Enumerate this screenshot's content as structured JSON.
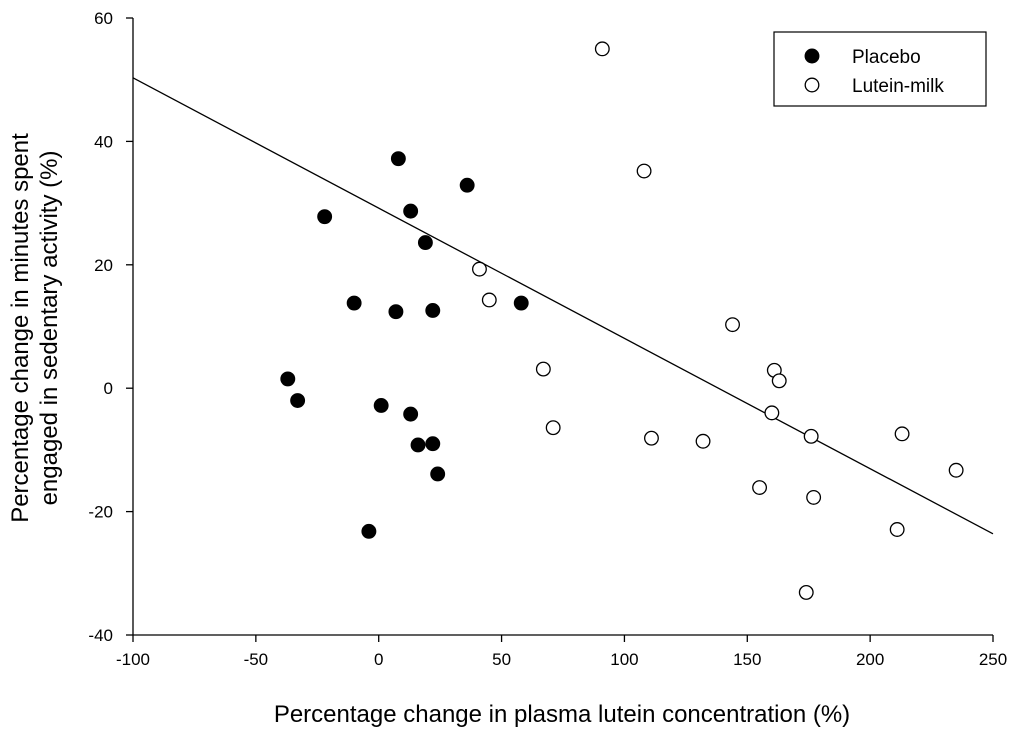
{
  "chart_data": {
    "type": "scatter",
    "title": "",
    "xlabel": "Percentage change in plasma lutein concentration (%)",
    "ylabel_lines": [
      "Percentage change in minutes spent",
      "engaged in sedentary activity (%)"
    ],
    "xlim": [
      -100,
      250
    ],
    "ylim": [
      -40,
      60
    ],
    "xticks": [
      -100,
      -50,
      0,
      50,
      100,
      150,
      200,
      250
    ],
    "yticks": [
      -40,
      -20,
      0,
      20,
      40,
      60
    ],
    "xtick_labels": [
      "-100",
      "-50",
      "0",
      "50",
      "100",
      "150",
      "200",
      "250"
    ],
    "ytick_labels": [
      "-40",
      "-20",
      "0",
      "20",
      "40",
      "60"
    ],
    "legend_position": "top-right",
    "series": [
      {
        "name": "Placebo",
        "marker": "filled-circle",
        "color": "#000000",
        "x": [
          -37,
          -33,
          -22,
          -10,
          -4,
          1,
          7,
          8,
          13,
          13,
          16,
          19,
          22,
          22,
          24,
          36,
          58
        ],
        "y": [
          1.5,
          -2,
          27.8,
          13.8,
          -23.2,
          -2.8,
          12.4,
          37.2,
          -4.2,
          28.7,
          -9.2,
          23.6,
          12.6,
          -9,
          -13.9,
          32.9,
          13.8
        ]
      },
      {
        "name": "Lutein-milk",
        "marker": "open-circle",
        "color": "#000000",
        "x": [
          41,
          45,
          67,
          71,
          91,
          108,
          111,
          132,
          144,
          155,
          160,
          161,
          163,
          176,
          177,
          174,
          211,
          213,
          235
        ],
        "y": [
          19.3,
          14.3,
          3.1,
          -6.4,
          55,
          35.2,
          -8.1,
          -8.6,
          10.3,
          -16.1,
          -4,
          2.9,
          1.2,
          -7.8,
          -17.7,
          -33.1,
          -22.9,
          -7.4,
          -13.3
        ]
      }
    ],
    "trend_line": {
      "x": [
        -100,
        250
      ],
      "y": [
        50.3,
        -23.6
      ]
    }
  }
}
